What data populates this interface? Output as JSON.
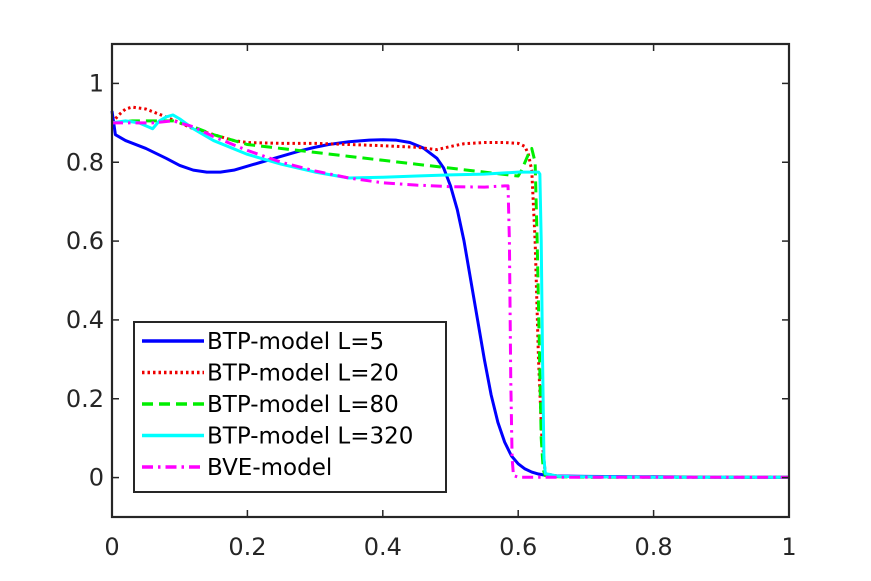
{
  "chart_data": {
    "type": "line",
    "title": "",
    "xlabel": "",
    "ylabel": "",
    "xlim": [
      0,
      1
    ],
    "ylim": [
      -0.1,
      1.1
    ],
    "xticks": [
      0,
      0.2,
      0.4,
      0.6,
      0.8,
      1
    ],
    "xtick_labels": [
      "0",
      "0.2",
      "0.4",
      "0.6",
      "0.8",
      "1"
    ],
    "yticks": [
      0,
      0.2,
      0.4,
      0.6,
      0.8,
      1
    ],
    "ytick_labels": [
      "0",
      "0.2",
      "0.4",
      "0.6",
      "0.8",
      "1"
    ],
    "grid": false,
    "legend_position": "bottom-left",
    "series": [
      {
        "name": "BTP-model L=5",
        "color": "#0000ff",
        "dash": "solid",
        "x": [
          0,
          0.005,
          0.02,
          0.05,
          0.08,
          0.1,
          0.12,
          0.14,
          0.16,
          0.18,
          0.2,
          0.22,
          0.25,
          0.28,
          0.3,
          0.32,
          0.35,
          0.38,
          0.4,
          0.42,
          0.44,
          0.46,
          0.48,
          0.49,
          0.5,
          0.51,
          0.52,
          0.53,
          0.54,
          0.55,
          0.56,
          0.57,
          0.58,
          0.59,
          0.6,
          0.61,
          0.62,
          0.63,
          0.64,
          0.66,
          0.7,
          0.8,
          0.9,
          1.0
        ],
        "y": [
          0.93,
          0.87,
          0.855,
          0.835,
          0.81,
          0.792,
          0.78,
          0.775,
          0.775,
          0.78,
          0.79,
          0.8,
          0.815,
          0.83,
          0.838,
          0.845,
          0.852,
          0.856,
          0.857,
          0.856,
          0.85,
          0.836,
          0.81,
          0.785,
          0.74,
          0.68,
          0.6,
          0.5,
          0.4,
          0.3,
          0.21,
          0.14,
          0.09,
          0.055,
          0.035,
          0.022,
          0.014,
          0.009,
          0.006,
          0.004,
          0.003,
          0.002,
          0.001,
          0.001
        ]
      },
      {
        "name": "BTP-model L=20",
        "color": "#ee0000",
        "dash": "dotted",
        "x": [
          0,
          0.01,
          0.02,
          0.03,
          0.05,
          0.08,
          0.1,
          0.12,
          0.15,
          0.18,
          0.2,
          0.25,
          0.3,
          0.35,
          0.4,
          0.45,
          0.48,
          0.5,
          0.52,
          0.55,
          0.58,
          0.6,
          0.61,
          0.615,
          0.62,
          0.625,
          0.63,
          0.635,
          0.64,
          0.66,
          0.7,
          0.8,
          0.9,
          1.0
        ],
        "y": [
          0.9,
          0.92,
          0.935,
          0.94,
          0.935,
          0.915,
          0.9,
          0.885,
          0.87,
          0.855,
          0.85,
          0.848,
          0.848,
          0.845,
          0.842,
          0.838,
          0.832,
          0.84,
          0.847,
          0.85,
          0.85,
          0.848,
          0.84,
          0.82,
          0.78,
          0.6,
          0.3,
          0.1,
          0.01,
          0.003,
          0.002,
          0.001,
          0.001,
          0.001
        ]
      },
      {
        "name": "BTP-model L=80",
        "color": "#00ee00",
        "dash": "dashed",
        "x": [
          0,
          0.03,
          0.06,
          0.09,
          0.12,
          0.15,
          0.2,
          0.25,
          0.3,
          0.35,
          0.4,
          0.45,
          0.5,
          0.55,
          0.6,
          0.605,
          0.61,
          0.615,
          0.62,
          0.625,
          0.628,
          0.631,
          0.634,
          0.637,
          0.64,
          0.66,
          0.7,
          0.8,
          0.9,
          1.0
        ],
        "y": [
          0.9,
          0.905,
          0.905,
          0.905,
          0.89,
          0.87,
          0.845,
          0.835,
          0.825,
          0.815,
          0.805,
          0.795,
          0.785,
          0.775,
          0.765,
          0.78,
          0.8,
          0.82,
          0.835,
          0.8,
          0.6,
          0.35,
          0.1,
          0.02,
          0.005,
          0.002,
          0.001,
          0.001,
          0.001,
          0.001
        ]
      },
      {
        "name": "BTP-model L=320",
        "color": "#00ffff",
        "dash": "solid",
        "x": [
          0,
          0.02,
          0.04,
          0.06,
          0.07,
          0.08,
          0.09,
          0.1,
          0.12,
          0.15,
          0.2,
          0.25,
          0.3,
          0.35,
          0.4,
          0.45,
          0.5,
          0.55,
          0.6,
          0.62,
          0.63,
          0.632,
          0.634,
          0.636,
          0.638,
          0.64,
          0.66,
          0.7,
          0.8,
          0.9,
          1.0
        ],
        "y": [
          0.9,
          0.905,
          0.9,
          0.885,
          0.905,
          0.915,
          0.92,
          0.91,
          0.885,
          0.855,
          0.82,
          0.795,
          0.775,
          0.76,
          0.762,
          0.765,
          0.768,
          0.77,
          0.775,
          0.775,
          0.775,
          0.77,
          0.6,
          0.3,
          0.05,
          0.01,
          0.003,
          0.002,
          0.001,
          0.001,
          0.001
        ]
      },
      {
        "name": "BVE-model",
        "color": "#ff00ff",
        "dash": "dashdot",
        "x": [
          0,
          0.03,
          0.06,
          0.09,
          0.12,
          0.15,
          0.2,
          0.25,
          0.3,
          0.35,
          0.4,
          0.45,
          0.5,
          0.55,
          0.58,
          0.585,
          0.587,
          0.589,
          0.591,
          0.593,
          0.6,
          0.7,
          0.8,
          0.9,
          1.0
        ],
        "y": [
          0.9,
          0.9,
          0.9,
          0.905,
          0.89,
          0.865,
          0.83,
          0.8,
          0.778,
          0.76,
          0.748,
          0.742,
          0.738,
          0.737,
          0.74,
          0.74,
          0.6,
          0.25,
          0.05,
          0.005,
          0.001,
          0.001,
          0.001,
          0.001,
          0.001
        ]
      }
    ]
  }
}
